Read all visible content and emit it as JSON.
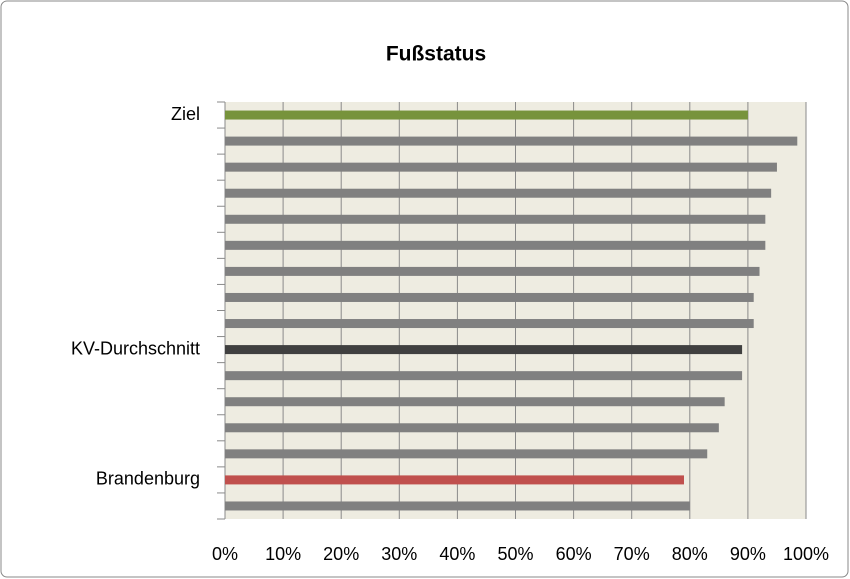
{
  "chart_data": {
    "type": "barh",
    "title": "Fußstatus",
    "categories": [
      "Ziel",
      null,
      null,
      null,
      null,
      null,
      null,
      null,
      null,
      "KV-Durchschnitt",
      null,
      null,
      null,
      null,
      "Brandenburg",
      null
    ],
    "values": [
      90,
      98.5,
      95,
      94,
      93,
      93,
      92,
      91,
      91,
      89,
      89,
      86,
      85,
      83,
      79,
      80
    ],
    "colors": [
      "#77933c",
      "#808080",
      "#808080",
      "#808080",
      "#808080",
      "#808080",
      "#808080",
      "#808080",
      "#808080",
      "#404040",
      "#808080",
      "#808080",
      "#808080",
      "#808080",
      "#c0504d",
      "#808080"
    ],
    "xlim": [
      0,
      100
    ],
    "xticks": [
      {
        "value": 0,
        "label": "0%"
      },
      {
        "value": 10,
        "label": "10%"
      },
      {
        "value": 20,
        "label": "20%"
      },
      {
        "value": 30,
        "label": "30%"
      },
      {
        "value": 40,
        "label": "40%"
      },
      {
        "value": 50,
        "label": "50%"
      },
      {
        "value": 60,
        "label": "60%"
      },
      {
        "value": 70,
        "label": "70%"
      },
      {
        "value": 80,
        "label": "80%"
      },
      {
        "value": 90,
        "label": "90%"
      },
      {
        "value": 100,
        "label": "100%"
      }
    ],
    "grid": true
  }
}
